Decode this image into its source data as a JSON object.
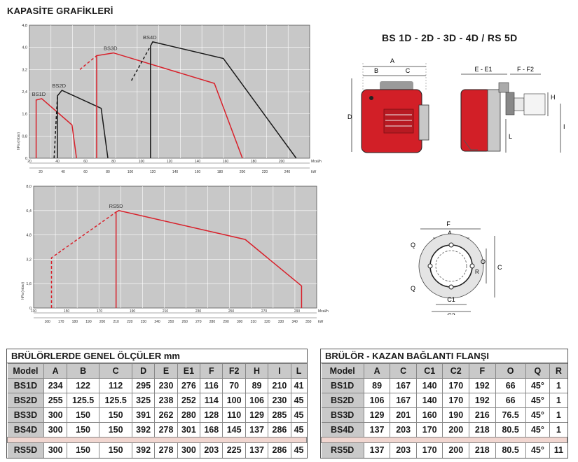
{
  "page_title": "KAPASİTE GRAFİKLERİ",
  "model_title": "BS 1D - 2D - 3D - 4D / RS 5D",
  "chart_data": [
    {
      "type": "line",
      "ylabel": "hPa (mbar)",
      "y_ticks": [
        "0",
        "0,8",
        "1,6",
        "2,4",
        "3,2",
        "4,0",
        "4,8"
      ],
      "ylim": [
        0,
        4.8
      ],
      "x_top_unit": "Mcal/h",
      "x_top_ticks": [
        "20",
        "40",
        "60",
        "80",
        "100",
        "120",
        "140",
        "160",
        "180",
        "200"
      ],
      "x_bottom_unit": "kW",
      "x_bottom_ticks": [
        "20",
        "40",
        "60",
        "80",
        "100",
        "120",
        "140",
        "160",
        "180",
        "200",
        "220",
        "240"
      ],
      "xlim_kw": [
        10,
        260
      ],
      "grid": true,
      "series": [
        {
          "name": "BS1D",
          "color": "#d8202a",
          "x": [
            16,
            16,
            21,
            48,
            52
          ],
          "y": [
            0,
            2.1,
            2.15,
            1.2,
            0
          ],
          "dashed_x": [],
          "dashed_y": []
        },
        {
          "name": "BS2D",
          "color": "#1a1a1a",
          "x": [
            35,
            35,
            39,
            74,
            80
          ],
          "y": [
            0,
            2.25,
            2.45,
            1.8,
            0
          ],
          "dashed_x": [
            32,
            35
          ],
          "dashed_y": [
            0,
            2.25
          ]
        },
        {
          "name": "BS3D",
          "color": "#d8202a",
          "x": [
            70,
            70,
            85,
            175,
            200
          ],
          "y": [
            0,
            3.7,
            3.8,
            2.7,
            0
          ],
          "dashed_x": [
            55,
            70
          ],
          "dashed_y": [
            3.2,
            3.7
          ]
        },
        {
          "name": "BS4D",
          "color": "#1a1a1a",
          "x": [
            118,
            118,
            120,
            183,
            248
          ],
          "y": [
            0,
            4.05,
            4.2,
            3.6,
            0
          ],
          "dashed_x": [
            101,
            118
          ],
          "dashed_y": [
            2.8,
            4.05
          ]
        }
      ]
    },
    {
      "type": "line",
      "ylabel": "hPa (mbar)",
      "y_ticks": [
        "0",
        "1,6",
        "3,2",
        "4,8",
        "6,4",
        "8,0"
      ],
      "ylim": [
        0,
        8
      ],
      "x_top_unit": "Mcal/h",
      "x_top_ticks": [
        "130",
        "150",
        "170",
        "190",
        "210",
        "230",
        "250",
        "270",
        "290"
      ],
      "x_bottom_unit": "kW",
      "x_bottom_ticks": [
        "160",
        "170",
        "180",
        "190",
        "200",
        "210",
        "220",
        "230",
        "240",
        "250",
        "260",
        "270",
        "280",
        "290",
        "300",
        "310",
        "320",
        "330",
        "340",
        "350"
      ],
      "xlim_kw": [
        150,
        356
      ],
      "grid": true,
      "series": [
        {
          "name": "RS5D",
          "color": "#d8202a",
          "x": [
            210,
            210,
            212,
            304,
            345,
            345
          ],
          "y": [
            0,
            6.3,
            6.4,
            4.5,
            1.45,
            0
          ],
          "dashed_x": [
            163,
            163,
            210
          ],
          "dashed_y": [
            0,
            3.3,
            6.3
          ]
        }
      ]
    }
  ],
  "diagram_labels": {
    "front": [
      "A",
      "B",
      "C",
      "D"
    ],
    "side": [
      "E - E1",
      "F - F2",
      "H",
      "I",
      "L"
    ],
    "flange": [
      "F",
      "A",
      "O",
      "C",
      "Q",
      "Q",
      "R",
      "C1",
      "C2"
    ]
  },
  "table_dims": {
    "caption": "BRÜLÖRLERDE GENEL ÖLÇÜLER mm",
    "headers": [
      "Model",
      "A",
      "B",
      "C",
      "D",
      "E",
      "E1",
      "F",
      "F2",
      "H",
      "I",
      "L"
    ],
    "rows": [
      [
        "BS1D",
        "234",
        "122",
        "112",
        "295",
        "230",
        "276",
        "116",
        "70",
        "89",
        "210",
        "41"
      ],
      [
        "BS2D",
        "255",
        "125.5",
        "125.5",
        "325",
        "238",
        "252",
        "114",
        "100",
        "106",
        "230",
        "45"
      ],
      [
        "BS3D",
        "300",
        "150",
        "150",
        "391",
        "262",
        "280",
        "128",
        "110",
        "129",
        "285",
        "45"
      ],
      [
        "BS4D",
        "300",
        "150",
        "150",
        "392",
        "278",
        "301",
        "168",
        "145",
        "137",
        "286",
        "45"
      ]
    ],
    "rs_row": [
      "RS5D",
      "300",
      "150",
      "150",
      "392",
      "278",
      "300",
      "203",
      "225",
      "137",
      "286",
      "45"
    ]
  },
  "table_flange": {
    "caption": "BRÜLÖR - KAZAN BAĞLANTI FLANŞI",
    "headers": [
      "Model",
      "A",
      "C",
      "C1",
      "C2",
      "F",
      "O",
      "Q",
      "R"
    ],
    "rows": [
      [
        "BS1D",
        "89",
        "167",
        "140",
        "170",
        "192",
        "66",
        "45°",
        "1"
      ],
      [
        "BS2D",
        "106",
        "167",
        "140",
        "170",
        "192",
        "66",
        "45°",
        "1"
      ],
      [
        "BS3D",
        "129",
        "201",
        "160",
        "190",
        "216",
        "76.5",
        "45°",
        "1"
      ],
      [
        "BS4D",
        "137",
        "203",
        "170",
        "200",
        "218",
        "80.5",
        "45°",
        "1"
      ]
    ],
    "rs_row": [
      "RS5D",
      "137",
      "203",
      "170",
      "200",
      "218",
      "80.5",
      "45°",
      "11"
    ]
  }
}
